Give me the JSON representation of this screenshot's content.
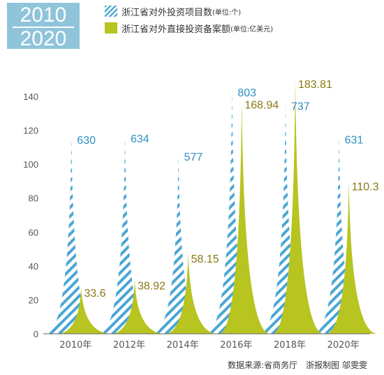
{
  "badge": {
    "year_top": "2010",
    "year_bottom": "2020"
  },
  "legend": [
    {
      "label": "浙江省对外投资项目数",
      "unit": "(单位:个)",
      "swatch": "hatch"
    },
    {
      "label": "浙江省对外直接投资备案额",
      "unit": "(单位:亿美元)",
      "swatch": "solid"
    }
  ],
  "colors": {
    "projects": "#4aa6d4",
    "amount": "#b8c420",
    "amount_label": "#8a7a14",
    "projects_label": "#2f8fc2",
    "badge": "#8fc4da"
  },
  "chart_data": {
    "type": "area",
    "categories": [
      "2010年",
      "2012年",
      "2014年",
      "2016年",
      "2018年",
      "2020年"
    ],
    "series": [
      {
        "name": "浙江省对外投资项目数",
        "unit": "个",
        "values": [
          630,
          634,
          577,
          803,
          737,
          631
        ],
        "labels": [
          "630",
          "634",
          "577",
          "803",
          "737",
          "631"
        ]
      },
      {
        "name": "浙江省对外直接投资备案额",
        "unit": "亿美元",
        "values": [
          33.6,
          38.92,
          58.15,
          168.94,
          183.81,
          110.3
        ],
        "labels": [
          "33.6",
          "38.92",
          "58.15",
          "168.94",
          "183.81",
          "110.3"
        ]
      }
    ],
    "yticks": [
      0,
      20,
      40,
      60,
      80,
      100,
      120,
      140
    ],
    "ylim": [
      0,
      140
    ],
    "xlabel": "",
    "ylabel": "",
    "grid": false,
    "legend_position": "top"
  },
  "footer": {
    "source": "数据来源:省商务厅",
    "credit": "浙报制图 邬雯雯"
  }
}
